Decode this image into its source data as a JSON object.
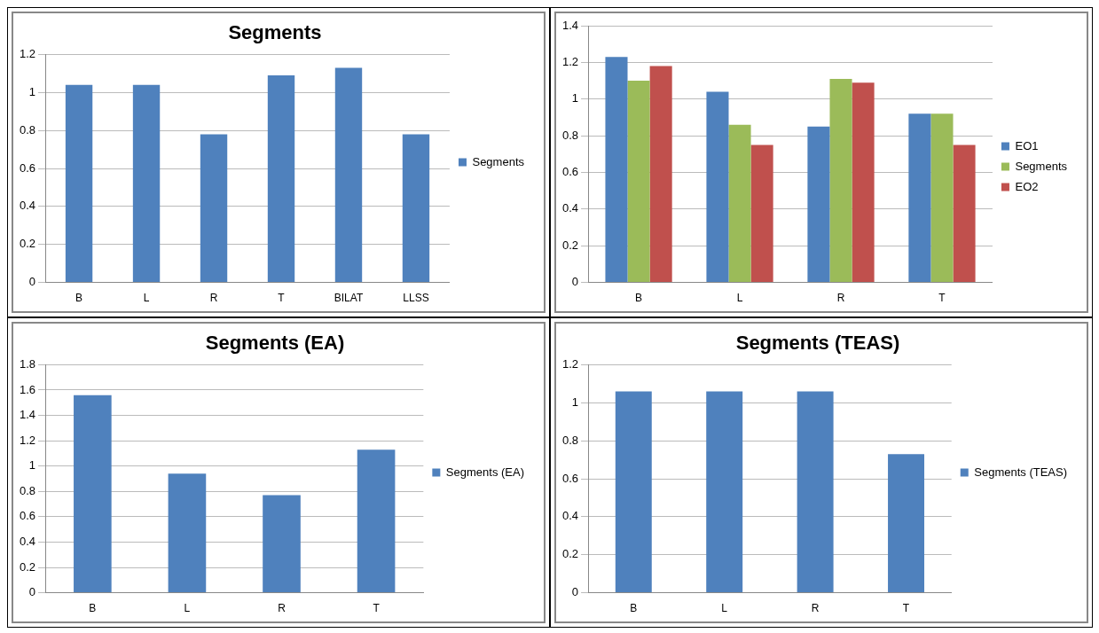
{
  "chart_data": [
    {
      "type": "bar",
      "title": "Segments",
      "categories": [
        "B",
        "L",
        "R",
        "T",
        "BILAT",
        "LLSS"
      ],
      "series": [
        {
          "name": "Segments",
          "color": "#4f81bd",
          "values": [
            1.04,
            1.04,
            0.78,
            1.09,
            1.13,
            0.78
          ]
        }
      ],
      "ylim": [
        0,
        1.2
      ],
      "yticks": [
        0,
        0.2,
        0.4,
        0.6,
        0.8,
        1,
        1.2
      ],
      "grid": "y",
      "legend": "right"
    },
    {
      "type": "bar",
      "categories": [
        "B",
        "L",
        "R",
        "T"
      ],
      "series": [
        {
          "name": "EO1",
          "color": "#4f81bd",
          "values": [
            1.23,
            1.04,
            0.85,
            0.92
          ]
        },
        {
          "name": "Segments",
          "color": "#9bbb59",
          "values": [
            1.1,
            0.86,
            1.11,
            0.92
          ]
        },
        {
          "name": "EO2",
          "color": "#c0504d",
          "values": [
            1.18,
            0.75,
            1.09,
            0.75
          ]
        }
      ],
      "ylim": [
        0,
        1.4
      ],
      "yticks": [
        0,
        0.2,
        0.4,
        0.6,
        0.8,
        1,
        1.2,
        1.4
      ],
      "grid": "y",
      "legend": "right"
    },
    {
      "type": "bar",
      "title": "Segments (EA)",
      "categories": [
        "B",
        "L",
        "R",
        "T"
      ],
      "series": [
        {
          "name": "Segments (EA)",
          "color": "#4f81bd",
          "values": [
            1.56,
            0.94,
            0.77,
            1.13
          ]
        }
      ],
      "ylim": [
        0,
        1.8
      ],
      "yticks": [
        0,
        0.2,
        0.4,
        0.6,
        0.8,
        1,
        1.2,
        1.4,
        1.6,
        1.8
      ],
      "grid": "y",
      "legend": "right"
    },
    {
      "type": "bar",
      "title": "Segments (TEAS)",
      "categories": [
        "B",
        "L",
        "R",
        "T"
      ],
      "series": [
        {
          "name": "Segments (TEAS)",
          "color": "#4f81bd",
          "values": [
            1.06,
            1.06,
            1.06,
            0.73
          ]
        }
      ],
      "ylim": [
        0,
        1.2
      ],
      "yticks": [
        0,
        0.2,
        0.4,
        0.6,
        0.8,
        1,
        1.2
      ],
      "grid": "y",
      "legend": "right"
    }
  ]
}
